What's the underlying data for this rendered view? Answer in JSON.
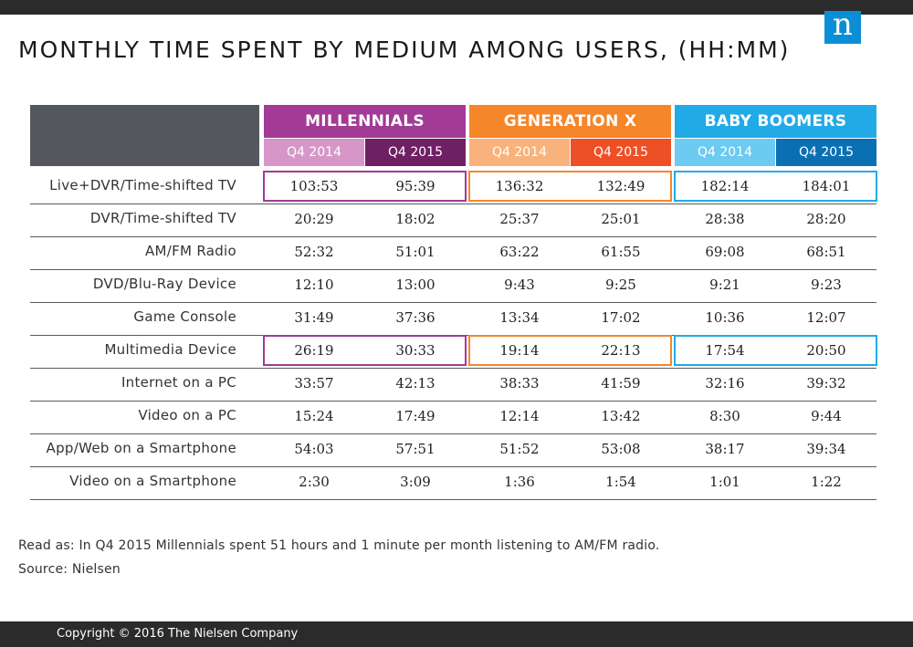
{
  "title": "MONTHLY TIME SPENT BY MEDIUM AMONG USERS, (HH:MM)",
  "logo_letter": "n",
  "note": "Read as: In Q4 2015 Millennials spent 51 hours and 1 minute per month listening to AM/FM radio.",
  "source": "Source: Nielsen",
  "copyright": "Copyright © 2016 The Nielsen Company",
  "colors": {
    "millennials_head": "#a23a96",
    "millennials_q4_2014": "#d697c8",
    "millennials_q4_2015": "#6f1f63",
    "genx_head": "#f5862a",
    "genx_q4_2014": "#fab27c",
    "genx_q4_2015": "#ee4f26",
    "boomers_head": "#22aae6",
    "boomers_q4_2014": "#6dcaf1",
    "boomers_q4_2015": "#0a6fb3"
  },
  "chart_data": {
    "type": "table",
    "groups": [
      {
        "name": "MILLENNIALS",
        "periods": [
          "Q4 2014",
          "Q4 2015"
        ]
      },
      {
        "name": "GENERATION X",
        "periods": [
          "Q4 2014",
          "Q4 2015"
        ]
      },
      {
        "name": "BABY BOOMERS",
        "periods": [
          "Q4 2014",
          "Q4 2015"
        ]
      }
    ],
    "rows": [
      {
        "label": "Live+DVR/Time-shifted TV",
        "values": [
          "103:53",
          "95:39",
          "136:32",
          "132:49",
          "182:14",
          "184:01"
        ],
        "highlighted": true
      },
      {
        "label": "DVR/Time-shifted TV",
        "values": [
          "20:29",
          "18:02",
          "25:37",
          "25:01",
          "28:38",
          "28:20"
        ]
      },
      {
        "label": "AM/FM Radio",
        "values": [
          "52:32",
          "51:01",
          "63:22",
          "61:55",
          "69:08",
          "68:51"
        ]
      },
      {
        "label": "DVD/Blu-Ray Device",
        "values": [
          "12:10",
          "13:00",
          "9:43",
          "9:25",
          "9:21",
          "9:23"
        ]
      },
      {
        "label": "Game Console",
        "values": [
          "31:49",
          "37:36",
          "13:34",
          "17:02",
          "10:36",
          "12:07"
        ]
      },
      {
        "label": "Multimedia Device",
        "values": [
          "26:19",
          "30:33",
          "19:14",
          "22:13",
          "17:54",
          "20:50"
        ],
        "highlighted": true
      },
      {
        "label": "Internet on a PC",
        "values": [
          "33:57",
          "42:13",
          "38:33",
          "41:59",
          "32:16",
          "39:32"
        ]
      },
      {
        "label": "Video on a PC",
        "values": [
          "15:24",
          "17:49",
          "12:14",
          "13:42",
          "8:30",
          "9:44"
        ]
      },
      {
        "label": "App/Web on a Smartphone",
        "values": [
          "54:03",
          "57:51",
          "51:52",
          "53:08",
          "38:17",
          "39:34"
        ]
      },
      {
        "label": "Video on a Smartphone",
        "values": [
          "2:30",
          "3:09",
          "1:36",
          "1:54",
          "1:01",
          "1:22"
        ]
      }
    ]
  }
}
